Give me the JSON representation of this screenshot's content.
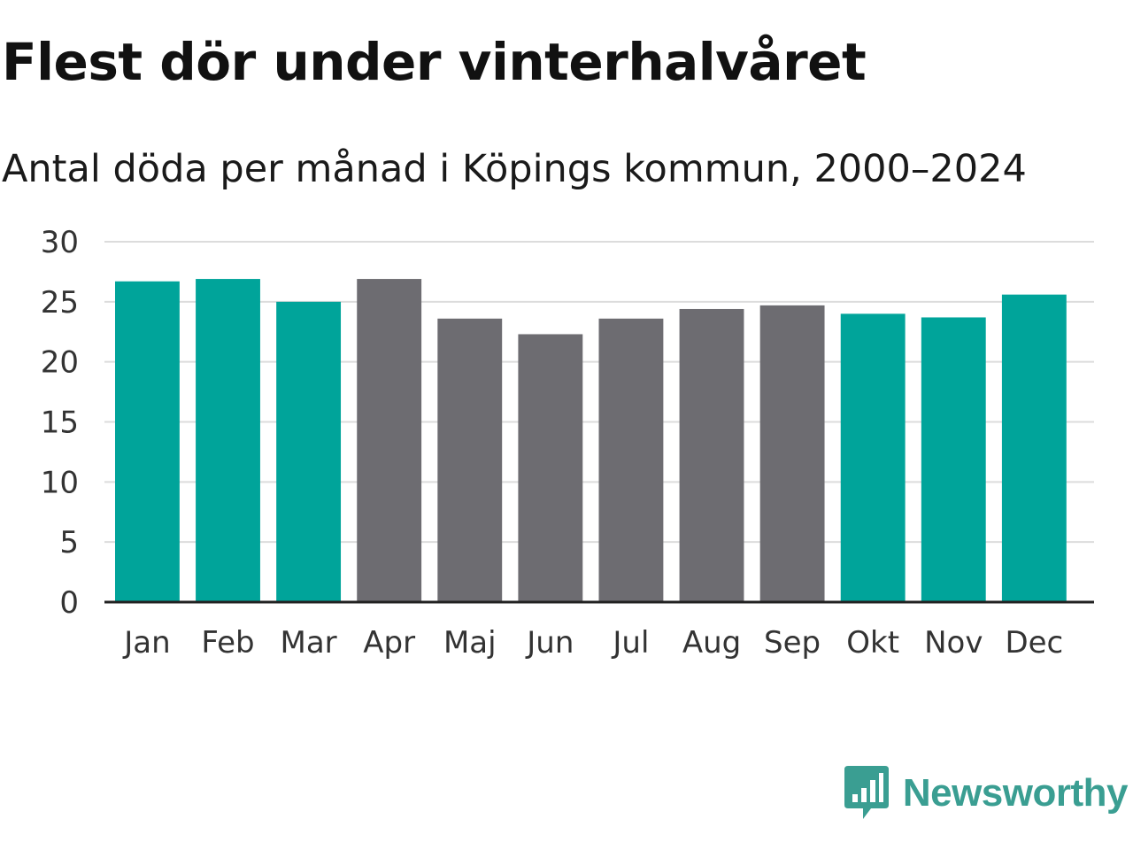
{
  "brand": {
    "name": "Newsworthy",
    "color": "#3a9e92",
    "icon": "chat-bubble-bar-chart-icon"
  },
  "colors": {
    "winter": "#00a49a",
    "summer": "#6d6c71",
    "grid": "#dcdcdc",
    "axis": "#222222"
  },
  "chart_data": {
    "type": "bar",
    "title": "Flest dör under vinterhalvåret",
    "subtitle": "Antal döda per månad i Köpings kommun, 2000–2024",
    "xlabel": "",
    "ylabel": "",
    "ylim": [
      0,
      30
    ],
    "yticks": [
      0,
      5,
      10,
      15,
      20,
      25,
      30
    ],
    "grid": true,
    "categories": [
      "Jan",
      "Feb",
      "Mar",
      "Apr",
      "Maj",
      "Jun",
      "Jul",
      "Aug",
      "Sep",
      "Okt",
      "Nov",
      "Dec"
    ],
    "values": [
      26.7,
      26.9,
      25.0,
      26.9,
      23.6,
      22.3,
      23.6,
      24.4,
      24.7,
      24.0,
      23.7,
      25.6
    ],
    "groups": [
      "winter",
      "winter",
      "winter",
      "summer",
      "summer",
      "summer",
      "summer",
      "summer",
      "summer",
      "winter",
      "winter",
      "winter"
    ]
  }
}
